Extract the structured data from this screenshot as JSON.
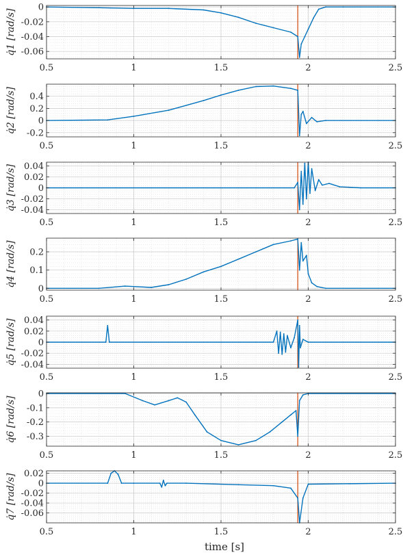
{
  "figure": {
    "xlabel": "time [s]",
    "colors": {
      "series": "#0072BD",
      "event": "#D95319",
      "axes": "#262626",
      "grid": "#dcdcdc",
      "background": "#ffffff"
    }
  },
  "chart_data": [
    {
      "type": "line",
      "ylabel": "q̇1 [rad/s]",
      "xlim": [
        0.5,
        2.5
      ],
      "ylim": [
        -0.07,
        0.002
      ],
      "xticks": [
        0.5,
        1,
        1.5,
        2,
        2.5
      ],
      "yticks": [
        0,
        -0.02,
        -0.04,
        -0.06
      ],
      "ytick_labels": [
        "0",
        "-0.02",
        "-0.04",
        "-0.06"
      ],
      "event_x": 1.94,
      "grid": true,
      "series": [
        {
          "x": [
            0.5,
            0.8,
            1.0,
            1.2,
            1.4,
            1.5,
            1.6,
            1.7,
            1.8,
            1.9,
            1.94,
            1.95,
            1.96,
            1.98,
            2.0,
            2.03,
            2.06,
            2.1,
            2.2,
            2.5
          ],
          "y": [
            0,
            -0.001,
            -0.002,
            -0.002,
            -0.004,
            -0.008,
            -0.014,
            -0.022,
            -0.028,
            -0.034,
            -0.04,
            -0.068,
            -0.05,
            -0.04,
            -0.03,
            -0.015,
            -0.003,
            0,
            0,
            0
          ]
        }
      ]
    },
    {
      "type": "line",
      "ylabel": "q̇2 [rad/s]",
      "xlim": [
        0.5,
        2.5
      ],
      "ylim": [
        -0.27,
        0.6
      ],
      "xticks": [
        0.5,
        1,
        1.5,
        2,
        2.5
      ],
      "yticks": [
        0.4,
        0.2,
        0,
        -0.2
      ],
      "ytick_labels": [
        "0.4",
        "0.2",
        "0",
        "-0.2"
      ],
      "event_x": 1.94,
      "grid": true,
      "series": [
        {
          "x": [
            0.5,
            0.85,
            1.0,
            1.2,
            1.4,
            1.5,
            1.6,
            1.7,
            1.8,
            1.9,
            1.94,
            1.95,
            1.96,
            1.97,
            1.99,
            2.02,
            2.05,
            2.1,
            2.5
          ],
          "y": [
            0,
            0.01,
            0.07,
            0.17,
            0.33,
            0.42,
            0.5,
            0.56,
            0.57,
            0.53,
            0.5,
            -0.25,
            0.1,
            0.15,
            -0.05,
            0.05,
            -0.02,
            0,
            0
          ]
        }
      ]
    },
    {
      "type": "line",
      "ylabel": "q̇3 [rad/s]",
      "xlim": [
        0.5,
        2.5
      ],
      "ylim": [
        -0.047,
        0.047
      ],
      "xticks": [
        0.5,
        1,
        1.5,
        2,
        2.5
      ],
      "yticks": [
        0.04,
        0.02,
        0,
        -0.02,
        -0.04
      ],
      "ytick_labels": [
        "0.04",
        "0.02",
        "0",
        "-0.02",
        "-0.04"
      ],
      "event_x": 1.94,
      "grid": true,
      "series": [
        {
          "x": [
            0.5,
            1.92,
            1.94,
            1.95,
            1.96,
            1.97,
            1.98,
            1.99,
            2.0,
            2.01,
            2.02,
            2.04,
            2.06,
            2.08,
            2.12,
            2.18,
            2.3,
            2.5
          ],
          "y": [
            0,
            0,
            0.01,
            -0.04,
            0.03,
            -0.03,
            0.045,
            -0.02,
            0.047,
            -0.01,
            0.035,
            -0.005,
            0.015,
            0.005,
            0.008,
            0.002,
            0,
            0
          ]
        }
      ]
    },
    {
      "type": "line",
      "ylabel": "q̇4 [rad/s]",
      "xlim": [
        0.5,
        2.5
      ],
      "ylim": [
        -0.01,
        0.275
      ],
      "xticks": [
        0.5,
        1,
        1.5,
        2,
        2.5
      ],
      "yticks": [
        0.2,
        0.1,
        0
      ],
      "ytick_labels": [
        "0.2",
        "0.1",
        "0"
      ],
      "event_x": 1.94,
      "grid": true,
      "series": [
        {
          "x": [
            0.5,
            0.8,
            0.95,
            1.1,
            1.2,
            1.3,
            1.4,
            1.5,
            1.6,
            1.7,
            1.8,
            1.9,
            1.94,
            1.95,
            1.96,
            1.97,
            1.99,
            2.0,
            2.02,
            2.05,
            2.1,
            2.5
          ],
          "y": [
            0,
            0,
            0.012,
            0.005,
            0.02,
            0.05,
            0.09,
            0.12,
            0.16,
            0.2,
            0.24,
            0.26,
            0.27,
            0.1,
            0.25,
            0.15,
            0.18,
            0.08,
            0.03,
            0.01,
            0,
            0
          ]
        }
      ]
    },
    {
      "type": "line",
      "ylabel": "q̇5 [rad/s]",
      "xlim": [
        0.5,
        2.5
      ],
      "ylim": [
        -0.047,
        0.047
      ],
      "xticks": [
        0.5,
        1,
        1.5,
        2,
        2.5
      ],
      "yticks": [
        0.04,
        0.02,
        0,
        -0.02,
        -0.04
      ],
      "ytick_labels": [
        "0.04",
        "0.02",
        "0",
        "-0.02",
        "-0.04"
      ],
      "event_x": 1.94,
      "grid": true,
      "series": [
        {
          "x": [
            0.5,
            0.84,
            0.85,
            0.86,
            1.8,
            1.82,
            1.83,
            1.84,
            1.85,
            1.86,
            1.87,
            1.88,
            1.9,
            1.92,
            1.94,
            1.945,
            1.95,
            1.955,
            1.97,
            2.0,
            2.5
          ],
          "y": [
            0,
            0,
            0.03,
            0,
            0,
            0.02,
            -0.02,
            0.018,
            -0.022,
            0.015,
            -0.018,
            0.012,
            -0.01,
            0.008,
            0.04,
            -0.045,
            0.03,
            -0.01,
            0.005,
            0,
            0
          ]
        }
      ]
    },
    {
      "type": "line",
      "ylabel": "q̇6 [rad/s]",
      "xlim": [
        0.5,
        2.5
      ],
      "ylim": [
        -0.37,
        0.005
      ],
      "xticks": [
        0.5,
        1,
        1.5,
        2,
        2.5
      ],
      "yticks": [
        0,
        -0.1,
        -0.2,
        -0.3
      ],
      "ytick_labels": [
        "0",
        "-0.1",
        "-0.2",
        "-0.3"
      ],
      "event_x": 1.94,
      "grid": true,
      "series": [
        {
          "x": [
            0.5,
            0.95,
            1.05,
            1.12,
            1.2,
            1.25,
            1.3,
            1.35,
            1.42,
            1.5,
            1.6,
            1.7,
            1.78,
            1.85,
            1.9,
            1.93,
            1.94,
            1.95,
            1.97,
            2.0,
            2.5
          ],
          "y": [
            0,
            0,
            -0.05,
            -0.08,
            -0.05,
            -0.03,
            -0.06,
            -0.15,
            -0.27,
            -0.33,
            -0.36,
            -0.33,
            -0.27,
            -0.2,
            -0.15,
            -0.12,
            -0.3,
            -0.05,
            -0.01,
            0,
            0
          ]
        }
      ]
    },
    {
      "type": "line",
      "ylabel": "q̇7 [rad/s]",
      "xlim": [
        0.5,
        2.5
      ],
      "ylim": [
        -0.08,
        0.025
      ],
      "xticks": [
        0.5,
        1,
        1.5,
        2,
        2.5
      ],
      "yticks": [
        0.02,
        0,
        -0.02,
        -0.04,
        -0.06
      ],
      "ytick_labels": [
        "0.02",
        "0",
        "-0.02",
        "-0.04",
        "-0.06"
      ],
      "event_x": 1.94,
      "grid": true,
      "series": [
        {
          "x": [
            0.5,
            0.85,
            0.87,
            0.89,
            0.91,
            0.93,
            1.0,
            1.15,
            1.16,
            1.17,
            1.18,
            1.19,
            1.3,
            1.6,
            1.8,
            1.9,
            1.94,
            1.95,
            1.97,
            2.0,
            2.5
          ],
          "y": [
            0,
            0,
            0.02,
            0.025,
            0.018,
            0,
            0,
            0,
            -0.008,
            0.006,
            -0.005,
            0,
            0,
            -0.003,
            -0.005,
            -0.01,
            -0.03,
            -0.08,
            -0.03,
            -0.002,
            0
          ]
        }
      ]
    }
  ]
}
